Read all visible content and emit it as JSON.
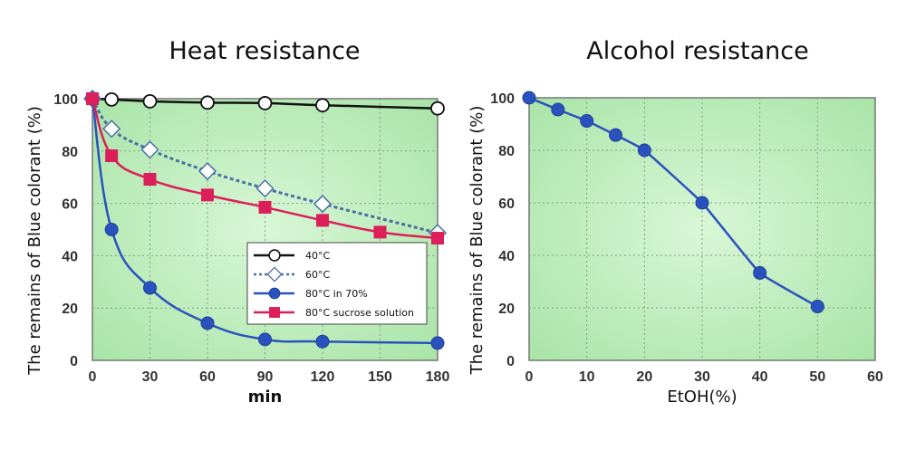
{
  "chart_data": [
    {
      "type": "line",
      "title": "Heat resistance",
      "xlabel": "min",
      "ylabel": "The remains of Blue colorant (%)",
      "xlim": [
        0,
        180
      ],
      "ylim": [
        0,
        100
      ],
      "xticks": [
        0,
        30,
        60,
        90,
        120,
        150,
        180
      ],
      "yticks": [
        0,
        20,
        40,
        60,
        80,
        100
      ],
      "grid": true,
      "background": "#c9f2c9",
      "legend_position": "lower-right",
      "series": [
        {
          "name": "40°C",
          "color": "#111111",
          "marker": "open-circle",
          "dash": false,
          "x": [
            0,
            10,
            30,
            60,
            90,
            120,
            180
          ],
          "y": [
            100,
            99.7,
            99,
            98.5,
            98.3,
            97.5,
            96.3
          ]
        },
        {
          "name": "60°C",
          "color": "#4a6fa5",
          "marker": "open-diamond",
          "dash": true,
          "x": [
            0,
            10,
            30,
            60,
            90,
            120,
            180
          ],
          "y": [
            100,
            88.5,
            80.5,
            72.3,
            65.7,
            59.8,
            48.7
          ]
        },
        {
          "name": "80°C in 70%",
          "color": "#2a52be",
          "marker": "filled-circle",
          "dash": false,
          "x": [
            0,
            10,
            30,
            60,
            90,
            120,
            180
          ],
          "y": [
            100,
            50,
            27.7,
            14.2,
            8,
            7.2,
            6.6
          ]
        },
        {
          "name": "80°C sucrose solution",
          "color": "#dc1e5a",
          "marker": "filled-square",
          "dash": false,
          "x": [
            0,
            10,
            30,
            60,
            90,
            120,
            150,
            180
          ],
          "y": [
            100,
            78.2,
            69.2,
            63.2,
            58.5,
            53.5,
            49,
            46.7
          ]
        }
      ]
    },
    {
      "type": "line",
      "title": "Alcohol resistance",
      "xlabel": "EtOH(%)",
      "ylabel": "The remains of Blue colorant (%)",
      "xlim": [
        0,
        60
      ],
      "ylim": [
        0,
        100
      ],
      "xticks": [
        0,
        10,
        20,
        30,
        40,
        50,
        60
      ],
      "yticks": [
        0,
        20,
        40,
        60,
        80,
        100
      ],
      "grid": true,
      "background": "#c9f2c9",
      "series": [
        {
          "color": "#2a52be",
          "marker": "filled-circle",
          "dash": false,
          "x": [
            0,
            5,
            10,
            15,
            20,
            30,
            40,
            50
          ],
          "y": [
            100,
            95.5,
            91.2,
            85.8,
            80,
            60,
            33.3,
            20.5
          ]
        }
      ]
    }
  ]
}
